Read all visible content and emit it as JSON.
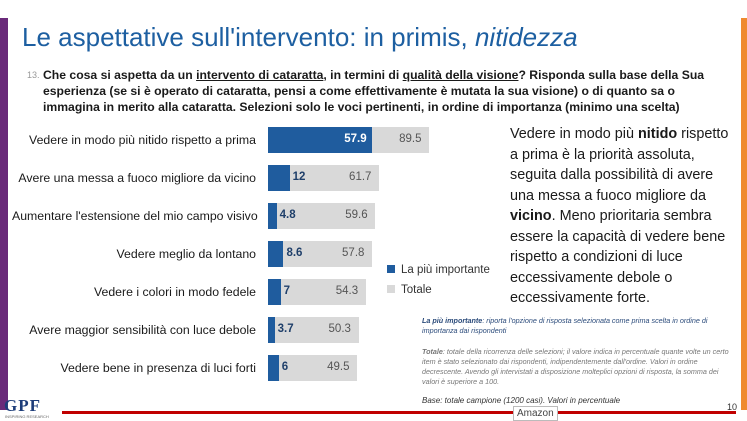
{
  "slide": {
    "title_main": "Le aspettative sull'intervento: in primis, ",
    "title_em": "nitidezza",
    "question_number": "13.",
    "question_p1": "Che cosa si aspetta da un ",
    "question_u1": "intervento di cataratta",
    "question_p2": ", in termini di ",
    "question_u2": "qualità della visione",
    "question_p3": "? Risponda sulla base della Sua esperienza (se si è operato di cataratta, pensi a come effettivamente è mutata la sua visione) o di quanto sa o immagina in merito alla cataratta. Selezioni solo le voci pertinenti, in ordine di importanza (minimo una scelta)",
    "commentary_p1": "Vedere in modo più ",
    "commentary_b1": "nitido",
    "commentary_p2": " rispetto a prima è la priorità assoluta, seguita dalla possibilità di avere una messa a fuoco migliore da ",
    "commentary_b2": "vicino",
    "commentary_p3": ". Meno prioritaria sembra essere la capacità di vedere bene rispetto a condizioni di luce eccessivamente debole o eccessivamente forte.",
    "note_bold": "La più importante",
    "note_blue": ": riporta l'opzione di risposta selezionata come prima scelta in ordine di importanza dai rispondenti",
    "note_totale_bold": "Totale",
    "note_totale": ": totale della ricorrenza delle selezioni; il valore indica in percentuale quante volte un certo item è stato selezionato dai rispondenti, indipendentemente dall'ordine. Valori in ordine decrescente. Avendo gli intervistati a disposizione molteplici opzioni di risposta, la somma dei valori è superiore a 100.",
    "base": "Base: totale campione (1200 casi). Valori in percentuale",
    "logo": "GPF",
    "logo_sub": "INSPIRING RESEARCH",
    "amazon": "Amazon",
    "page_number": "10"
  },
  "colors": {
    "title": "#1d5fa1",
    "important": "#1f5c9e",
    "total": "#d9d9d9",
    "accent_left": "#6a2a7a",
    "accent_right": "#ef8a30",
    "footer_line": "#c00000"
  },
  "chart_data": {
    "type": "bar",
    "orientation": "horizontal",
    "categories": [
      "Vedere in modo più nitido rispetto a prima",
      "Avere una messa a fuoco migliore da vicino",
      "Aumentare l'estensione del mio campo visivo",
      "Vedere meglio da lontano",
      "Vedere i colori in modo fedele",
      "Avere maggior sensibilità con luce debole",
      "Vedere bene in presenza di luci forti"
    ],
    "series": [
      {
        "name": "La più importante",
        "values": [
          57.9,
          12,
          4.8,
          8.6,
          7,
          3.7,
          6
        ]
      },
      {
        "name": "Totale",
        "values": [
          89.5,
          61.7,
          59.6,
          57.8,
          54.3,
          50.3,
          49.5
        ]
      }
    ],
    "xlim": [
      0,
      100
    ],
    "grid": false,
    "legend_position": "right"
  }
}
